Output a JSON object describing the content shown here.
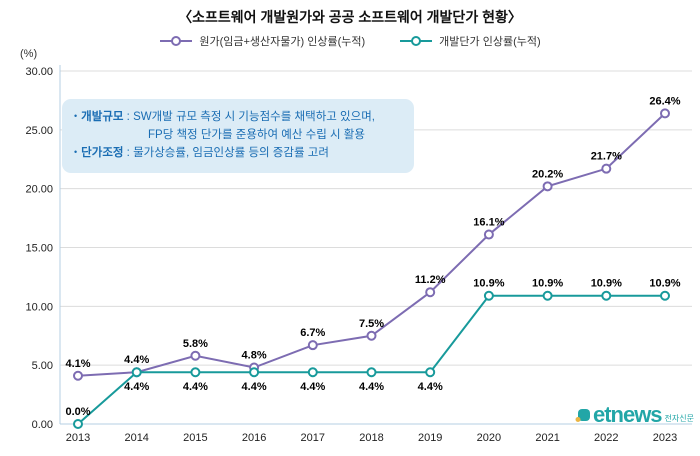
{
  "title": "〈소프트웨어 개발원가와 공공 소프트웨어 개발단가 현황〉",
  "y_axis_unit": "(%)",
  "legend": [
    {
      "label": "원가(임금+생산자물가) 인상률(누적)",
      "color": "#7d6cb2"
    },
    {
      "label": "개발단가 인상률(누적)",
      "color": "#189a9b"
    }
  ],
  "annotation": {
    "lines": [
      {
        "bullet": "•",
        "term": "개발규모",
        "text": " : SW개발 규모 측정 시 기능점수를 채택하고 있으며,"
      },
      {
        "bullet": "",
        "term": "",
        "text": "FP당 책정 단가를 준용하여 예산 수립 시 활용"
      },
      {
        "bullet": "•",
        "term": "단가조정",
        "text": " : 물가상승률, 임금인상률 등의 증감률 고려"
      }
    ]
  },
  "watermark": {
    "brand": "etnews",
    "sub": "전자신문"
  },
  "chart_data": {
    "type": "line",
    "categories": [
      "2013",
      "2014",
      "2015",
      "2016",
      "2017",
      "2018",
      "2019",
      "2020",
      "2021",
      "2022",
      "2023"
    ],
    "series": [
      {
        "name": "원가(임금+생산자물가) 인상률(누적)",
        "color": "#7d6cb2",
        "values": [
          4.1,
          4.4,
          5.8,
          4.8,
          6.7,
          7.5,
          11.2,
          16.1,
          20.2,
          21.7,
          26.4
        ],
        "label_positions": "above"
      },
      {
        "name": "개발단가 인상률(누적)",
        "color": "#189a9b",
        "values": [
          0.0,
          4.4,
          4.4,
          4.4,
          4.4,
          4.4,
          4.4,
          10.9,
          10.9,
          10.9,
          10.9
        ],
        "label_positions": [
          "above",
          "below",
          "below",
          "below",
          "below",
          "below",
          "below",
          "above",
          "above",
          "above",
          "above"
        ]
      }
    ],
    "ylim": [
      0,
      30
    ],
    "yticks": [
      0,
      5,
      10,
      15,
      20,
      25,
      30
    ],
    "grid": true,
    "legend_position": "top",
    "xlabel": "",
    "ylabel": "(%)"
  }
}
